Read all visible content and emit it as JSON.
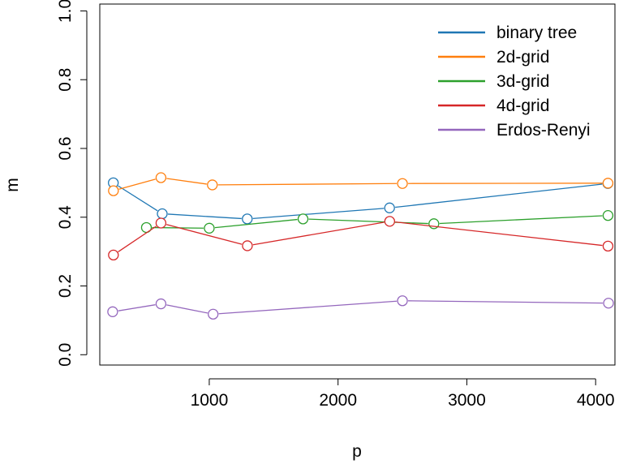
{
  "chart_data": {
    "type": "line",
    "title": "",
    "xlabel": "p",
    "ylabel": "m",
    "xlim": [
      150,
      4150
    ],
    "ylim": [
      -0.03,
      1.02
    ],
    "x_ticks": [
      1000,
      2000,
      3000,
      4000
    ],
    "x_tick_labels": [
      "1000",
      "2000",
      "3000",
      "4000"
    ],
    "y_ticks": [
      0.0,
      0.2,
      0.4,
      0.6,
      0.8,
      1.0
    ],
    "y_tick_labels": [
      "0.0",
      "0.2",
      "0.4",
      "0.6",
      "0.8",
      "1.0"
    ],
    "grid": false,
    "legend_position": "top-right",
    "markers": "open-circle",
    "series": [
      {
        "name": "binary tree",
        "color": "#1f77b4",
        "x": [
          255,
          635,
          1295,
          2400,
          4095
        ],
        "y": [
          0.5,
          0.41,
          0.395,
          0.427,
          0.498
        ]
      },
      {
        "name": "2d-grid",
        "color": "#ff7f0e",
        "x": [
          256,
          625,
          1024,
          2500,
          4096
        ],
        "y": [
          0.477,
          0.515,
          0.494,
          0.498,
          0.499
        ]
      },
      {
        "name": "3d-grid",
        "color": "#2ca02c",
        "x": [
          512,
          1000,
          1728,
          2744,
          4096
        ],
        "y": [
          0.37,
          0.368,
          0.395,
          0.381,
          0.405
        ]
      },
      {
        "name": "4d-grid",
        "color": "#d62728",
        "x": [
          256,
          625,
          1296,
          2401,
          4096
        ],
        "y": [
          0.29,
          0.383,
          0.317,
          0.388,
          0.316
        ]
      },
      {
        "name": "Erdos-Renyi",
        "color": "#9467bd",
        "x": [
          250,
          625,
          1030,
          2500,
          4100
        ],
        "y": [
          0.125,
          0.148,
          0.118,
          0.157,
          0.15
        ]
      }
    ]
  }
}
